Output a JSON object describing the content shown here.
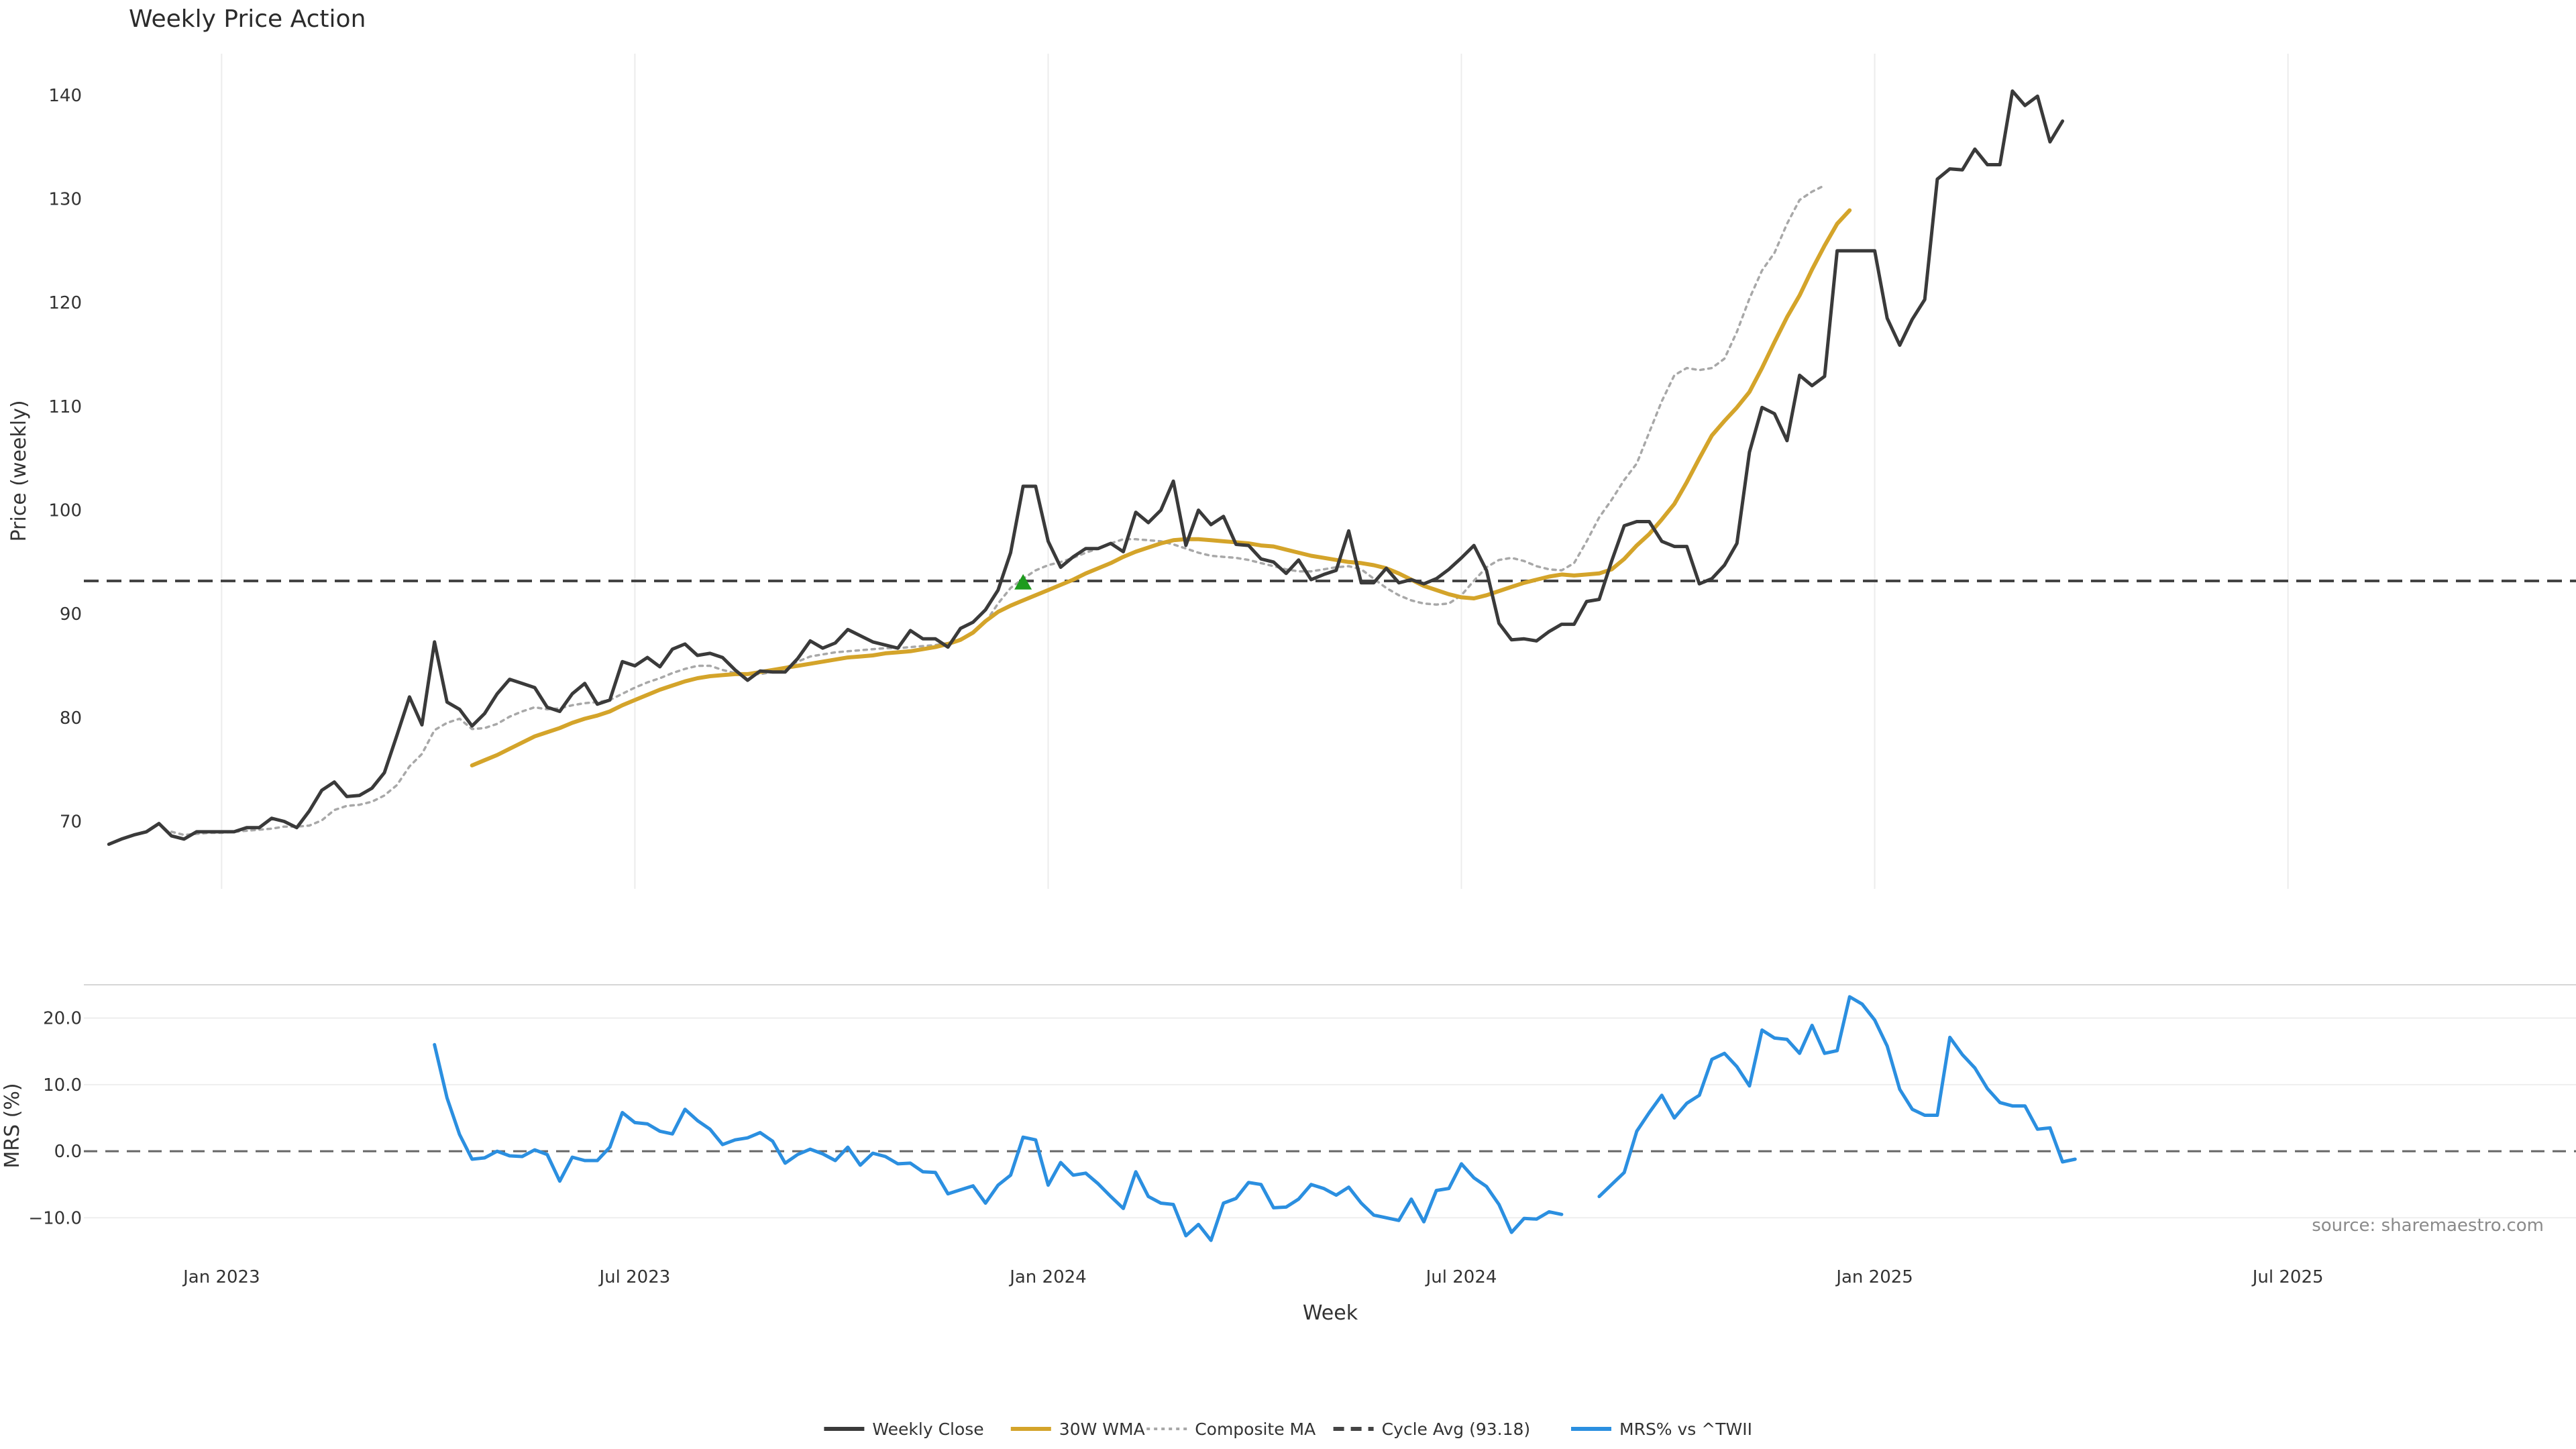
{
  "chart_data": {
    "type": "line",
    "title": "Weekly Price Action",
    "xlabel": "Week",
    "x_ticks": [
      "Jan 2023",
      "Jul 2023",
      "Jan 2024",
      "Jul 2024",
      "Jan 2025",
      "Jul 2025"
    ],
    "x_tick_weeks": [
      9,
      42,
      75,
      108,
      141,
      174
    ],
    "x_range_weeks": [
      -2,
      197
    ],
    "price_panel": {
      "ylabel": "Price (weekly)",
      "ylim": [
        63.5,
        144
      ],
      "yticks": [
        70,
        80,
        90,
        100,
        110,
        120,
        130,
        140
      ],
      "grid": true
    },
    "mrs_panel": {
      "ylabel": "MRS (%)",
      "ylim": [
        -14,
        25
      ],
      "yticks": [
        -10,
        0,
        10,
        20
      ],
      "ytick_labels": [
        "−10.0",
        "0.0",
        "10.0",
        "20.0"
      ],
      "zero_line": 0,
      "grid": true
    },
    "series": [
      {
        "name": "Weekly Close",
        "panel": "price",
        "color": "#3a3a3a",
        "style": "solid",
        "values": [
          67.8,
          68.3,
          68.7,
          69.0,
          69.8,
          68.6,
          68.3,
          69.0,
          69.0,
          69.0,
          69.0,
          69.4,
          69.4,
          70.3,
          70.0,
          69.4,
          71.0,
          73.0,
          73.8,
          72.4,
          72.5,
          73.2,
          74.7,
          78.3,
          82.0,
          79.3,
          87.3,
          81.5,
          80.8,
          79.2,
          80.4,
          82.3,
          83.7,
          83.3,
          82.9,
          81.0,
          80.6,
          82.3,
          83.3,
          81.3,
          81.7,
          85.4,
          85.0,
          85.8,
          84.9,
          86.6,
          87.1,
          86.0,
          86.2,
          85.8,
          84.6,
          83.6,
          84.5,
          84.4,
          84.4,
          85.7,
          87.4,
          86.7,
          87.2,
          88.5,
          87.9,
          87.3,
          87.0,
          86.7,
          88.4,
          87.6,
          87.6,
          86.8,
          88.6,
          89.2,
          90.4,
          92.3,
          95.9,
          102.3,
          102.3,
          97.0,
          94.5,
          95.5,
          96.3,
          96.3,
          96.8,
          96.0,
          99.8,
          98.8,
          100.0,
          102.8,
          96.6,
          100.0,
          98.6,
          99.4,
          96.7,
          96.6,
          95.3,
          95.0,
          93.9,
          95.2,
          93.3,
          93.8,
          94.2,
          98.0,
          93.0,
          93.0,
          94.4,
          93.0,
          93.3,
          92.9,
          93.4,
          94.3,
          95.4,
          96.6,
          94.2,
          89.1,
          87.5,
          87.6,
          87.4,
          88.3,
          89.0,
          89.0,
          91.2,
          91.4,
          95.1,
          98.5,
          98.9,
          98.9,
          97.0,
          96.5,
          96.5,
          92.9,
          93.4,
          94.7,
          96.8,
          105.6,
          109.9,
          109.3,
          106.7,
          113.0,
          112.0,
          112.9,
          125.0,
          125.0,
          125.0,
          125.0,
          118.5,
          115.9,
          118.4,
          120.3,
          131.9,
          132.9,
          132.8,
          134.8,
          133.3,
          133.3,
          140.4,
          139.0,
          139.9,
          135.5,
          137.5
        ]
      },
      {
        "name": "30W WMA",
        "panel": "price",
        "color": "#d4a42a",
        "style": "solid",
        "start_index": 29,
        "values": [
          75.4,
          75.9,
          76.4,
          77.0,
          77.6,
          78.2,
          78.6,
          79.0,
          79.5,
          79.9,
          80.2,
          80.6,
          81.2,
          81.7,
          82.2,
          82.7,
          83.1,
          83.5,
          83.8,
          84.0,
          84.1,
          84.2,
          84.2,
          84.4,
          84.6,
          84.8,
          85.0,
          85.2,
          85.4,
          85.6,
          85.8,
          85.9,
          86.0,
          86.2,
          86.3,
          86.4,
          86.6,
          86.8,
          87.1,
          87.5,
          88.2,
          89.3,
          90.2,
          90.8,
          91.3,
          91.8,
          92.3,
          92.8,
          93.3,
          93.9,
          94.4,
          94.9,
          95.5,
          96.0,
          96.4,
          96.8,
          97.1,
          97.2,
          97.2,
          97.1,
          97.0,
          96.9,
          96.8,
          96.6,
          96.5,
          96.2,
          95.9,
          95.6,
          95.4,
          95.2,
          95.0,
          94.9,
          94.7,
          94.4,
          93.9,
          93.3,
          92.7,
          92.3,
          91.9,
          91.6,
          91.5,
          91.8,
          92.2,
          92.6,
          93.0,
          93.3,
          93.6,
          93.8,
          93.7,
          93.8,
          93.9,
          94.3,
          95.3,
          96.6,
          97.7,
          99.1,
          100.6,
          102.7,
          105.0,
          107.2,
          108.6,
          109.9,
          111.4,
          113.7,
          116.2,
          118.6,
          120.7,
          123.2,
          125.5,
          127.6,
          128.9
        ]
      },
      {
        "name": "Composite MA",
        "panel": "price",
        "color": "#a8a8a8",
        "style": "dotted",
        "start_index": 5,
        "values": [
          69.0,
          68.7,
          68.8,
          68.9,
          68.9,
          69.0,
          69.1,
          69.2,
          69.3,
          69.5,
          69.5,
          69.6,
          70.1,
          71.1,
          71.5,
          71.6,
          71.9,
          72.5,
          73.5,
          75.3,
          76.5,
          78.8,
          79.5,
          79.9,
          78.9,
          79.0,
          79.4,
          80.1,
          80.6,
          81.0,
          80.8,
          80.9,
          81.2,
          81.4,
          81.5,
          81.7,
          82.3,
          82.9,
          83.4,
          83.8,
          84.3,
          84.7,
          85.0,
          85.0,
          84.6,
          84.3,
          84.2,
          84.2,
          84.4,
          84.8,
          85.4,
          85.9,
          86.1,
          86.3,
          86.4,
          86.5,
          86.6,
          86.7,
          86.7,
          86.8,
          86.9,
          87.0,
          87.2,
          87.6,
          88.2,
          89.2,
          91.0,
          92.5,
          93.4,
          94.2,
          94.7,
          95.0,
          95.4,
          95.9,
          96.3,
          96.8,
          97.2,
          97.2,
          97.1,
          97.0,
          96.7,
          96.3,
          95.9,
          95.6,
          95.5,
          95.4,
          95.2,
          94.9,
          94.6,
          94.3,
          94.1,
          94.1,
          94.3,
          94.5,
          94.6,
          94.3,
          93.4,
          92.5,
          91.8,
          91.3,
          91.0,
          90.9,
          91.0,
          91.8,
          93.2,
          94.5,
          95.2,
          95.4,
          95.1,
          94.6,
          94.3,
          94.2,
          94.9,
          97.0,
          99.3,
          101.0,
          102.9,
          104.5,
          107.5,
          110.5,
          113.0,
          113.7,
          113.5,
          113.7,
          114.6,
          117.2,
          120.4,
          123.1,
          124.8,
          127.6,
          129.9,
          130.7,
          131.3
        ]
      },
      {
        "name": "Cycle Avg (93.18)",
        "panel": "price",
        "color": "#444444",
        "style": "dashed",
        "constant": 93.18
      },
      {
        "name": "MRS% vs ^TWII",
        "panel": "mrs",
        "color": "#2b8fe0",
        "style": "solid",
        "segments": [
          {
            "start_index": 26,
            "values": [
              16.0,
              8.0,
              2.5,
              -1.2,
              -1.0,
              0.0,
              -0.7,
              -0.8,
              0.2,
              -0.5,
              -4.5,
              -0.9,
              -1.4,
              -1.4,
              0.6,
              5.8,
              4.3,
              4.1,
              3.0,
              2.6,
              6.3,
              4.6,
              3.3,
              1.0,
              1.7,
              2.0,
              2.8,
              1.5,
              -1.8,
              -0.5,
              0.3,
              -0.4,
              -1.4,
              0.6,
              -2.1,
              -0.3,
              -0.8,
              -1.9,
              -1.8,
              -3.1,
              -3.2,
              -6.4,
              -5.8,
              -5.2,
              -7.8,
              -5.1,
              -3.6,
              2.1,
              1.7,
              -5.1,
              -1.7,
              -3.6,
              -3.3,
              -4.9,
              -6.8,
              -8.6,
              -3.1,
              -6.8,
              -7.8,
              -8.0,
              -12.7,
              -11.0,
              -13.4,
              -7.8,
              -7.1,
              -4.7,
              -5.0,
              -8.5,
              -8.4,
              -7.2,
              -5.0,
              -5.6,
              -6.6,
              -5.4,
              -7.8,
              -9.6,
              -10.0,
              -10.4,
              -7.2,
              -10.6,
              -5.9,
              -5.6,
              -1.9,
              -4.0,
              -5.3,
              -8.0,
              -12.2,
              -10.1,
              -10.2,
              -9.1,
              -9.5
            ]
          },
          {
            "start_index": 119,
            "values": [
              -6.8,
              -5.0,
              -3.2,
              3.0,
              5.8,
              8.4,
              5.0,
              7.2,
              8.4,
              13.8,
              14.7,
              12.7,
              9.8,
              18.2,
              17.0,
              16.8,
              14.7,
              18.9,
              14.7,
              15.1,
              23.2,
              22.1,
              19.7,
              15.8,
              9.3,
              6.3,
              5.4,
              5.4,
              17.1,
              14.5,
              12.5,
              9.4,
              7.3,
              6.8,
              6.8,
              3.3,
              3.5,
              -1.6,
              -1.2
            ]
          }
        ]
      }
    ],
    "markers": [
      {
        "type": "triangle-up",
        "color": "#1e9b1e",
        "panel": "price",
        "x": 73,
        "y": 93.0
      }
    ],
    "annotations": [
      {
        "text": "source: sharemaestro.com"
      }
    ],
    "legend": {
      "placement": "bottom-center",
      "entries": [
        {
          "label": "Weekly Close",
          "color": "#3a3a3a",
          "style": "solid"
        },
        {
          "label": "30W WMA",
          "color": "#d4a42a",
          "style": "solid"
        },
        {
          "label": "Composite MA",
          "color": "#a8a8a8",
          "style": "dotted"
        },
        {
          "label": "Cycle Avg (93.18)",
          "color": "#444444",
          "style": "dashed"
        },
        {
          "label": "MRS% vs ^TWII",
          "color": "#2b8fe0",
          "style": "solid"
        }
      ]
    }
  }
}
